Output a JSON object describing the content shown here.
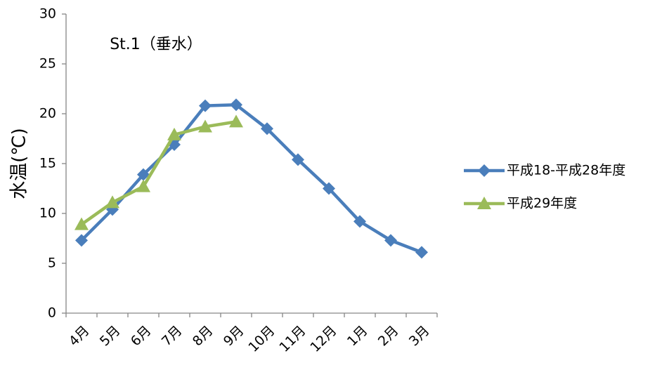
{
  "chart_data": {
    "type": "line",
    "title": "St.1（垂水）",
    "ylabel": "水温(℃)",
    "categories": [
      "4月",
      "5月",
      "6月",
      "7月",
      "8月",
      "9月",
      "10月",
      "11月",
      "12月",
      "1月",
      "2月",
      "3月"
    ],
    "series": [
      {
        "name": "平成18-平成28年度",
        "color": "#4a7ebb",
        "marker": "diamond",
        "values": [
          7.3,
          10.4,
          13.9,
          16.9,
          20.8,
          20.9,
          18.5,
          15.4,
          12.5,
          9.2,
          7.3,
          6.1
        ]
      },
      {
        "name": "平成29年度",
        "color": "#9bbb59",
        "marker": "triangle",
        "values": [
          8.9,
          11.1,
          12.7,
          17.9,
          18.7,
          19.2,
          null,
          null,
          null,
          null,
          null,
          null
        ]
      }
    ],
    "ylim": [
      0,
      30
    ],
    "yticks": [
      0,
      5,
      10,
      15,
      20,
      25,
      30
    ],
    "grid": false,
    "legend": "right"
  }
}
